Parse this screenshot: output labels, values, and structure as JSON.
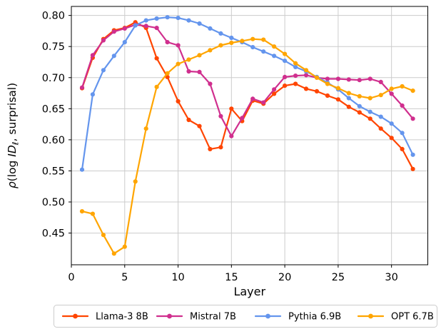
{
  "chart_data": {
    "type": "line",
    "title": "",
    "xlabel": "Layer",
    "ylabel": "ρ(log IDℓ, surprisal)",
    "ylabel_segments": [
      {
        "text": "ρ",
        "italic": true
      },
      {
        "text": "(log ",
        "italic": false
      },
      {
        "text": "ID",
        "italic": true
      },
      {
        "text": "ℓ",
        "italic": true,
        "sub": true
      },
      {
        "text": ", surprisal)",
        "italic": false
      }
    ],
    "grid": true,
    "legend_position": "bottom",
    "xlim": [
      0,
      33.4
    ],
    "ylim": [
      0.399,
      0.8145
    ],
    "x_ticks": [
      0,
      5,
      10,
      15,
      20,
      25,
      30
    ],
    "x_tick_labels": [
      "0",
      "5",
      "10",
      "15",
      "20",
      "25",
      "30"
    ],
    "y_ticks": [
      0.45,
      0.5,
      0.55,
      0.6,
      0.65,
      0.7,
      0.75,
      0.8
    ],
    "y_tick_labels": [
      "0.45",
      "0.50",
      "0.55",
      "0.60",
      "0.65",
      "0.70",
      "0.75",
      "0.80"
    ],
    "x": [
      1,
      2,
      3,
      4,
      5,
      6,
      7,
      8,
      9,
      10,
      11,
      12,
      13,
      14,
      15,
      16,
      17,
      18,
      19,
      20,
      21,
      22,
      23,
      24,
      25,
      26,
      27,
      28,
      29,
      30,
      31,
      32
    ],
    "series": [
      {
        "name": "Llama-3 8B",
        "color": "#FF4500",
        "values": [
          0.683,
          0.732,
          0.762,
          0.776,
          0.78,
          0.789,
          0.78,
          0.731,
          0.701,
          0.662,
          0.632,
          0.622,
          0.585,
          0.588,
          0.65,
          0.63,
          0.663,
          0.658,
          0.674,
          0.687,
          0.69,
          0.682,
          0.678,
          0.671,
          0.665,
          0.653,
          0.644,
          0.634,
          0.618,
          0.603,
          0.585,
          0.553
        ]
      },
      {
        "name": "Mistral 7B",
        "color": "#D02F8E",
        "values": [
          0.684,
          0.736,
          0.76,
          0.774,
          0.779,
          0.785,
          0.783,
          0.78,
          0.757,
          0.752,
          0.71,
          0.709,
          0.69,
          0.638,
          0.606,
          0.635,
          0.666,
          0.66,
          0.681,
          0.701,
          0.703,
          0.704,
          0.7,
          0.698,
          0.698,
          0.697,
          0.696,
          0.698,
          0.693,
          0.674,
          0.655,
          0.634
        ]
      },
      {
        "name": "Pythia 6.9B",
        "color": "#6495ED",
        "values": [
          0.552,
          0.673,
          0.712,
          0.735,
          0.757,
          0.784,
          0.792,
          0.795,
          0.797,
          0.796,
          0.792,
          0.787,
          0.779,
          0.771,
          0.764,
          0.757,
          0.749,
          0.742,
          0.735,
          0.727,
          0.717,
          0.71,
          0.701,
          0.692,
          0.681,
          0.667,
          0.654,
          0.645,
          0.637,
          0.626,
          0.611,
          0.576
        ]
      },
      {
        "name": "OPT 6.7B",
        "color": "#FFA500",
        "values": [
          0.485,
          0.481,
          0.447,
          0.417,
          0.428,
          0.533,
          0.618,
          0.685,
          0.707,
          0.722,
          0.729,
          0.736,
          0.744,
          0.752,
          0.756,
          0.759,
          0.762,
          0.761,
          0.75,
          0.738,
          0.723,
          0.712,
          0.7,
          0.69,
          0.683,
          0.675,
          0.67,
          0.667,
          0.672,
          0.682,
          0.686,
          0.679
        ]
      }
    ],
    "style": {
      "grid_color": "#cccccc",
      "spine_color": "#000000",
      "background": "#ffffff",
      "legend_border_color": "#cccccc"
    }
  }
}
